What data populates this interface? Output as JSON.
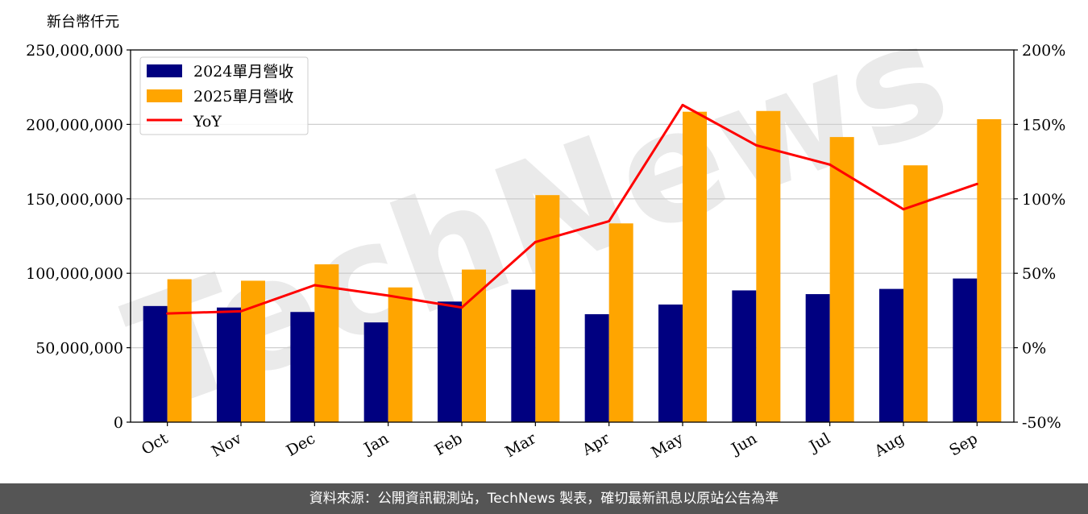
{
  "chart_data": {
    "type": "bar",
    "categories": [
      "Oct",
      "Nov",
      "Dec",
      "Jan",
      "Feb",
      "Mar",
      "Apr",
      "May",
      "Jun",
      "Jul",
      "Aug",
      "Sep"
    ],
    "series": [
      {
        "name": "2024單月營收",
        "type": "bar",
        "axis": "left",
        "color": "#000080",
        "values": [
          78000000,
          77000000,
          74000000,
          67000000,
          81000000,
          89000000,
          72500000,
          79000000,
          88500000,
          86000000,
          89500000,
          96500000
        ]
      },
      {
        "name": "2025單月營收",
        "type": "bar",
        "axis": "left",
        "color": "#FFA500",
        "values": [
          96000000,
          95000000,
          106000000,
          90500000,
          102500000,
          152500000,
          133500000,
          208500000,
          209000000,
          191500000,
          172500000,
          203500000
        ]
      },
      {
        "name": "YoY",
        "type": "line",
        "axis": "right",
        "color": "#FF0000",
        "values": [
          23,
          24.5,
          42,
          35,
          27,
          71,
          85,
          163,
          136,
          123,
          93,
          110
        ]
      }
    ],
    "y_left_label": "新台幣仟元",
    "y_left_ticks": [
      "0",
      "50,000,000",
      "100,000,000",
      "150,000,000",
      "200,000,000",
      "250,000,000"
    ],
    "y_left_lim": [
      0,
      250000000
    ],
    "y_right_ticks": [
      "-50%",
      "0%",
      "50%",
      "100%",
      "150%",
      "200%"
    ],
    "y_right_lim": [
      -50,
      200
    ],
    "grid": "horizontal",
    "legend_position": "top-left",
    "watermark": "TechNews",
    "watermark_color": "#e8e8e8"
  },
  "footer": {
    "text": "資料來源：公開資訊觀測站，TechNews 製表，確切最新訊息以原站公告為準"
  }
}
